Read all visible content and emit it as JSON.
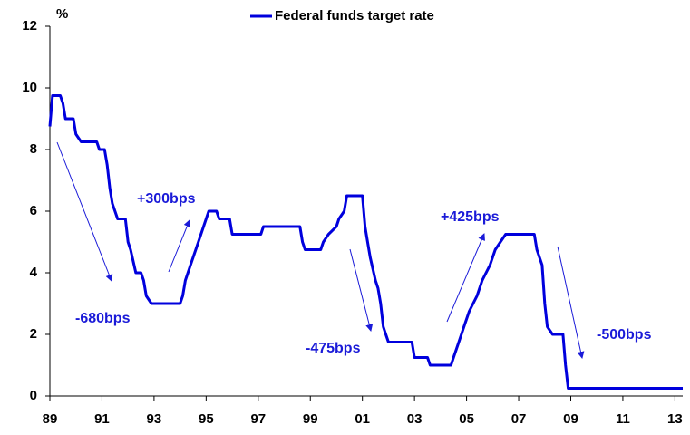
{
  "chart_data": {
    "type": "line",
    "y_label": "%",
    "x": [
      1989.0,
      1989.1,
      1989.4,
      1989.5,
      1989.6,
      1989.9,
      1990.0,
      1990.2,
      1990.8,
      1990.9,
      1991.1,
      1991.2,
      1991.3,
      1991.4,
      1991.5,
      1991.6,
      1991.9,
      1992.0,
      1992.1,
      1992.3,
      1992.5,
      1992.6,
      1992.7,
      1992.9,
      1994.0,
      1994.1,
      1994.2,
      1994.4,
      1994.6,
      1994.9,
      1995.1,
      1995.4,
      1995.5,
      1995.9,
      1996.0,
      1997.1,
      1997.2,
      1998.6,
      1998.7,
      1998.8,
      1999.4,
      1999.5,
      1999.7,
      2000.0,
      2000.1,
      2000.3,
      2000.4,
      2001.0,
      2001.1,
      2001.2,
      2001.3,
      2001.5,
      2001.6,
      2001.7,
      2001.8,
      2001.9,
      2002.0,
      2002.9,
      2003.0,
      2003.5,
      2003.6,
      2004.4,
      2004.5,
      2004.7,
      2004.9,
      2005.1,
      2005.4,
      2005.6,
      2005.9,
      2006.1,
      2006.3,
      2006.5,
      2007.6,
      2007.7,
      2007.8,
      2007.9,
      2008.0,
      2008.1,
      2008.3,
      2008.7,
      2008.8,
      2008.9,
      2013.3
    ],
    "series": [
      {
        "name": "Federal funds target rate",
        "color": "#0000dd",
        "values": [
          8.75,
          9.75,
          9.75,
          9.5,
          9.0,
          9.0,
          8.5,
          8.25,
          8.25,
          8.0,
          8.0,
          7.5,
          6.75,
          6.25,
          6.0,
          5.75,
          5.75,
          5.0,
          4.75,
          4.0,
          4.0,
          3.75,
          3.25,
          3.0,
          3.0,
          3.25,
          3.75,
          4.25,
          4.75,
          5.5,
          6.0,
          6.0,
          5.75,
          5.75,
          5.25,
          5.25,
          5.5,
          5.5,
          5.0,
          4.75,
          4.75,
          5.0,
          5.25,
          5.5,
          5.75,
          6.0,
          6.5,
          6.5,
          5.5,
          5.0,
          4.5,
          3.75,
          3.5,
          3.0,
          2.25,
          2.0,
          1.75,
          1.75,
          1.25,
          1.25,
          1.0,
          1.0,
          1.25,
          1.75,
          2.25,
          2.75,
          3.25,
          3.75,
          4.25,
          4.75,
          5.0,
          5.25,
          5.25,
          4.75,
          4.5,
          4.25,
          3.0,
          2.25,
          2.0,
          2.0,
          1.0,
          0.25,
          0.25
        ]
      }
    ],
    "xlim": [
      1989,
      2013.3
    ],
    "ylim": [
      0,
      12
    ],
    "yticks": [
      0,
      2,
      4,
      6,
      8,
      10,
      12
    ],
    "xticks": [
      {
        "value": 1989,
        "label": "89"
      },
      {
        "value": 1991,
        "label": "91"
      },
      {
        "value": 1993,
        "label": "93"
      },
      {
        "value": 1995,
        "label": "95"
      },
      {
        "value": 1997,
        "label": "97"
      },
      {
        "value": 1999,
        "label": "99"
      },
      {
        "value": 2001,
        "label": "01"
      },
      {
        "value": 2003,
        "label": "03"
      },
      {
        "value": 2005,
        "label": "05"
      },
      {
        "value": 2007,
        "label": "07"
      },
      {
        "value": 2009,
        "label": "09"
      },
      {
        "value": 2011,
        "label": "11"
      },
      {
        "value": 2013,
        "label": "13"
      }
    ],
    "annotations": [
      "+300bps",
      "-680bps",
      "-475bps",
      "+425bps",
      "-500bps"
    ],
    "legend": "top"
  }
}
